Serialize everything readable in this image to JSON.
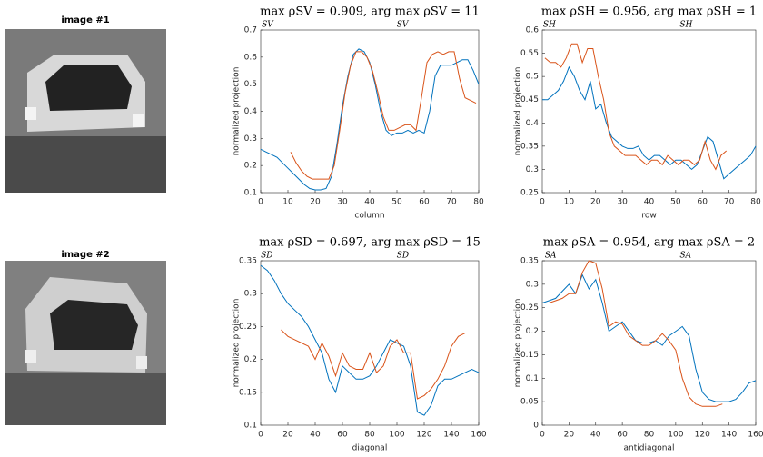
{
  "images": [
    {
      "title": "image #1"
    },
    {
      "title": "image #2"
    }
  ],
  "chart_data": [
    {
      "type": "line",
      "title": "max ρSV = 0.909, arg max ρSV = 11",
      "title_sub": [
        "SV",
        "SV"
      ],
      "xlabel": "column",
      "ylabel": "normalized projection",
      "xlim": [
        0,
        80
      ],
      "ylim": [
        0.1,
        0.7
      ],
      "xticks": [
        0,
        10,
        20,
        30,
        40,
        50,
        60,
        70,
        80
      ],
      "yticks": [
        0.1,
        0.2,
        0.3,
        0.4,
        0.5,
        0.6,
        0.7
      ],
      "series": [
        {
          "color": "#0072bd",
          "x": [
            0,
            2,
            4,
            6,
            8,
            10,
            12,
            14,
            16,
            18,
            20,
            22,
            24,
            26,
            28,
            30,
            32,
            34,
            36,
            38,
            40,
            42,
            44,
            46,
            48,
            50,
            52,
            54,
            56,
            58,
            60,
            62,
            64,
            66,
            68,
            70,
            72,
            74,
            76,
            78,
            80
          ],
          "values": [
            0.26,
            0.25,
            0.24,
            0.23,
            0.21,
            0.19,
            0.17,
            0.15,
            0.13,
            0.115,
            0.11,
            0.11,
            0.115,
            0.16,
            0.28,
            0.42,
            0.53,
            0.61,
            0.63,
            0.62,
            0.58,
            0.5,
            0.4,
            0.33,
            0.31,
            0.32,
            0.32,
            0.33,
            0.32,
            0.33,
            0.32,
            0.4,
            0.53,
            0.57,
            0.57,
            0.57,
            0.58,
            0.59,
            0.59,
            0.55,
            0.5
          ]
        },
        {
          "color": "#d95319",
          "x": [
            11,
            13,
            15,
            17,
            19,
            21,
            23,
            25,
            27,
            29,
            31,
            33,
            35,
            37,
            39,
            41,
            43,
            45,
            47,
            49,
            51,
            53,
            55,
            57,
            59,
            61,
            63,
            65,
            67,
            69,
            71,
            73,
            75,
            77,
            79
          ],
          "values": [
            0.25,
            0.21,
            0.18,
            0.16,
            0.15,
            0.15,
            0.15,
            0.15,
            0.2,
            0.33,
            0.47,
            0.57,
            0.62,
            0.62,
            0.6,
            0.55,
            0.47,
            0.38,
            0.33,
            0.33,
            0.34,
            0.35,
            0.35,
            0.33,
            0.45,
            0.58,
            0.61,
            0.62,
            0.61,
            0.62,
            0.62,
            0.52,
            0.45,
            0.44,
            0.43
          ]
        }
      ]
    },
    {
      "type": "line",
      "title": "max ρSH = 0.956, arg max ρSH = 1",
      "title_sub": [
        "SH",
        "SH"
      ],
      "xlabel": "row",
      "ylabel": "normalized projection",
      "xlim": [
        0,
        80
      ],
      "ylim": [
        0.25,
        0.6
      ],
      "xticks": [
        0,
        10,
        20,
        30,
        40,
        50,
        60,
        70,
        80
      ],
      "yticks": [
        0.25,
        0.3,
        0.35,
        0.4,
        0.45,
        0.5,
        0.55,
        0.6
      ],
      "series": [
        {
          "color": "#0072bd",
          "x": [
            0,
            2,
            4,
            6,
            8,
            10,
            12,
            14,
            16,
            18,
            20,
            22,
            24,
            26,
            28,
            30,
            32,
            34,
            36,
            38,
            40,
            42,
            44,
            46,
            48,
            50,
            52,
            54,
            56,
            58,
            60,
            62,
            64,
            66,
            68,
            70,
            72,
            74,
            76,
            78,
            80
          ],
          "values": [
            0.45,
            0.45,
            0.46,
            0.47,
            0.49,
            0.52,
            0.5,
            0.47,
            0.45,
            0.49,
            0.43,
            0.44,
            0.4,
            0.37,
            0.36,
            0.35,
            0.345,
            0.345,
            0.35,
            0.33,
            0.32,
            0.33,
            0.33,
            0.32,
            0.31,
            0.32,
            0.32,
            0.31,
            0.3,
            0.31,
            0.34,
            0.37,
            0.36,
            0.32,
            0.28,
            0.29,
            0.3,
            0.31,
            0.32,
            0.33,
            0.35
          ]
        },
        {
          "color": "#d95319",
          "x": [
            1,
            3,
            5,
            7,
            9,
            11,
            13,
            15,
            17,
            19,
            21,
            23,
            25,
            27,
            29,
            31,
            33,
            35,
            37,
            39,
            41,
            43,
            45,
            47,
            49,
            51,
            53,
            55,
            57,
            59,
            61,
            63,
            65,
            67,
            69
          ],
          "values": [
            0.54,
            0.53,
            0.53,
            0.52,
            0.54,
            0.57,
            0.57,
            0.53,
            0.56,
            0.56,
            0.5,
            0.45,
            0.38,
            0.35,
            0.34,
            0.33,
            0.33,
            0.33,
            0.32,
            0.31,
            0.32,
            0.32,
            0.31,
            0.33,
            0.32,
            0.31,
            0.32,
            0.32,
            0.31,
            0.32,
            0.36,
            0.32,
            0.3,
            0.33,
            0.34
          ]
        }
      ]
    },
    {
      "type": "line",
      "title": "max ρSD = 0.697, arg max ρSD = 15",
      "title_sub": [
        "SD",
        "SD"
      ],
      "xlabel": "diagonal",
      "ylabel": "normalized projection",
      "xlim": [
        0,
        160
      ],
      "ylim": [
        0.1,
        0.35
      ],
      "xticks": [
        0,
        20,
        40,
        60,
        80,
        100,
        120,
        140,
        160
      ],
      "yticks": [
        0.1,
        0.15,
        0.2,
        0.25,
        0.3,
        0.35
      ],
      "series": [
        {
          "color": "#0072bd",
          "x": [
            0,
            5,
            10,
            15,
            20,
            25,
            30,
            35,
            40,
            45,
            50,
            55,
            60,
            65,
            70,
            75,
            80,
            85,
            90,
            95,
            100,
            105,
            110,
            115,
            120,
            125,
            130,
            135,
            140,
            145,
            150,
            155,
            160
          ],
          "values": [
            0.343,
            0.335,
            0.32,
            0.3,
            0.285,
            0.275,
            0.265,
            0.25,
            0.23,
            0.21,
            0.17,
            0.15,
            0.19,
            0.18,
            0.17,
            0.17,
            0.175,
            0.19,
            0.21,
            0.23,
            0.225,
            0.22,
            0.19,
            0.12,
            0.115,
            0.13,
            0.16,
            0.17,
            0.17,
            0.175,
            0.18,
            0.185,
            0.18
          ]
        },
        {
          "color": "#d95319",
          "x": [
            15,
            20,
            25,
            30,
            35,
            40,
            45,
            50,
            55,
            60,
            65,
            70,
            75,
            80,
            85,
            90,
            95,
            100,
            105,
            110,
            115,
            120,
            125,
            130,
            135,
            140,
            145,
            150
          ],
          "values": [
            0.245,
            0.235,
            0.23,
            0.225,
            0.22,
            0.2,
            0.225,
            0.205,
            0.175,
            0.21,
            0.19,
            0.185,
            0.185,
            0.21,
            0.18,
            0.19,
            0.22,
            0.23,
            0.21,
            0.21,
            0.14,
            0.145,
            0.155,
            0.17,
            0.19,
            0.22,
            0.235,
            0.24
          ]
        }
      ]
    },
    {
      "type": "line",
      "title": "max ρSA = 0.954, arg max ρSA = 2",
      "title_sub": [
        "SA",
        "SA"
      ],
      "xlabel": "antidiagonal",
      "ylabel": "normalized projection",
      "xlim": [
        0,
        160
      ],
      "ylim": [
        0,
        0.35
      ],
      "xticks": [
        0,
        20,
        40,
        60,
        80,
        100,
        120,
        140,
        160
      ],
      "yticks": [
        0,
        0.05,
        0.1,
        0.15,
        0.2,
        0.25,
        0.3,
        0.35
      ],
      "series": [
        {
          "color": "#0072bd",
          "x": [
            0,
            5,
            10,
            15,
            20,
            25,
            30,
            35,
            40,
            45,
            50,
            55,
            60,
            65,
            70,
            75,
            80,
            85,
            90,
            95,
            100,
            105,
            110,
            115,
            120,
            125,
            130,
            135,
            140,
            145,
            150,
            155,
            160
          ],
          "values": [
            0.26,
            0.265,
            0.27,
            0.285,
            0.3,
            0.28,
            0.32,
            0.29,
            0.31,
            0.26,
            0.2,
            0.21,
            0.22,
            0.2,
            0.18,
            0.175,
            0.175,
            0.18,
            0.17,
            0.19,
            0.2,
            0.21,
            0.19,
            0.12,
            0.07,
            0.055,
            0.05,
            0.05,
            0.05,
            0.055,
            0.07,
            0.09,
            0.095
          ]
        },
        {
          "color": "#d95319",
          "x": [
            0,
            5,
            10,
            15,
            20,
            25,
            30,
            35,
            40,
            45,
            50,
            55,
            60,
            65,
            70,
            75,
            80,
            85,
            90,
            95,
            100,
            105,
            110,
            115,
            120,
            125,
            130,
            135
          ],
          "values": [
            0.26,
            0.26,
            0.265,
            0.27,
            0.28,
            0.28,
            0.325,
            0.35,
            0.345,
            0.29,
            0.21,
            0.22,
            0.215,
            0.19,
            0.18,
            0.17,
            0.17,
            0.18,
            0.195,
            0.18,
            0.16,
            0.1,
            0.06,
            0.045,
            0.04,
            0.04,
            0.04,
            0.045
          ]
        }
      ]
    }
  ]
}
